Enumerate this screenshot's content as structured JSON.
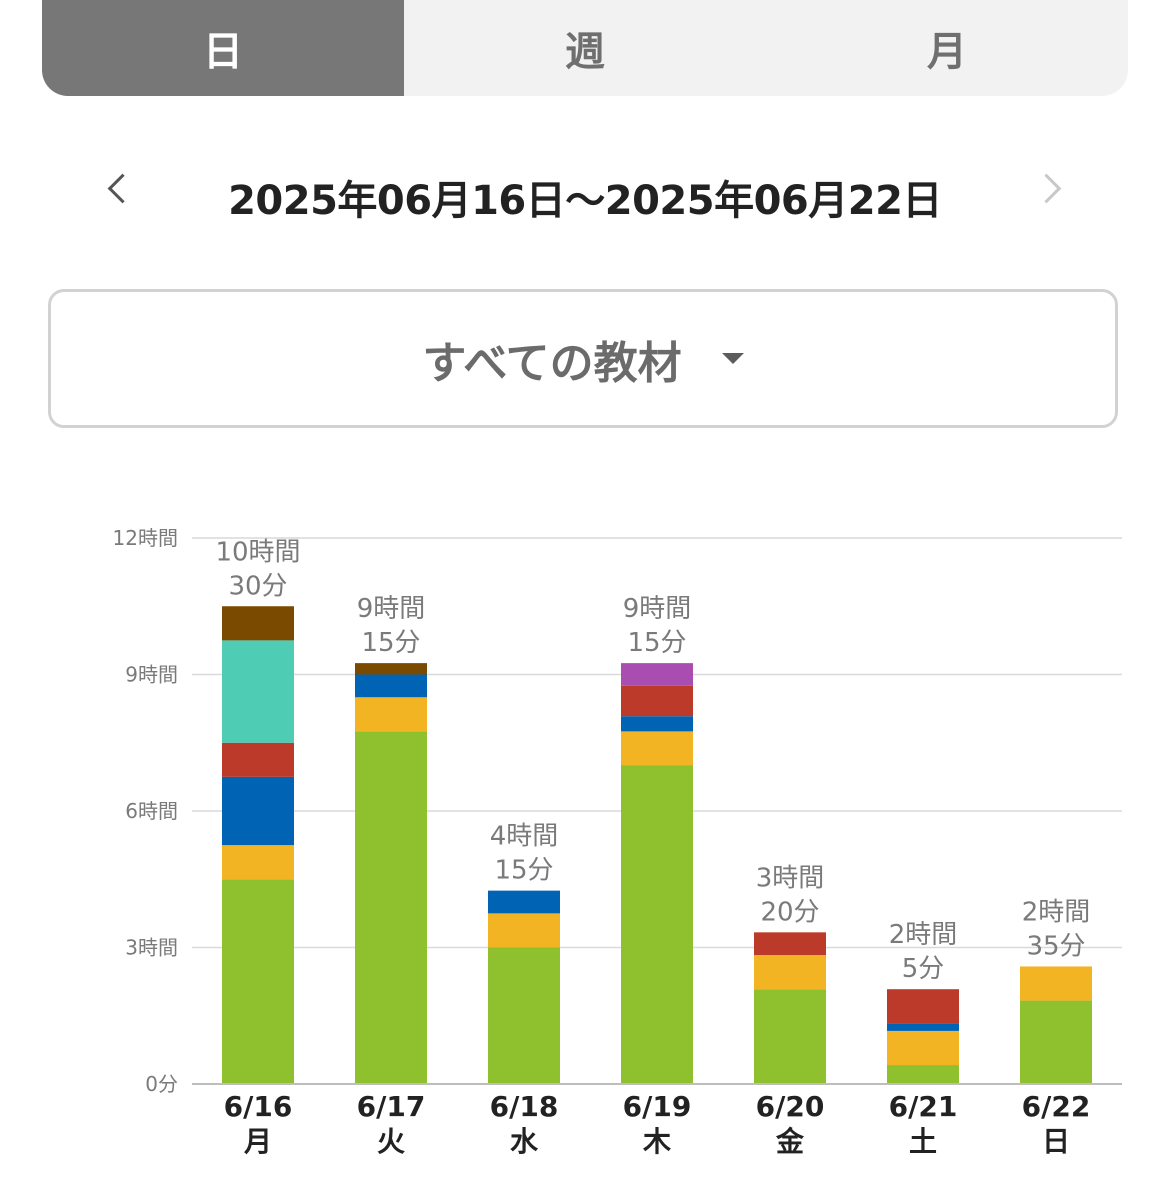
{
  "tabs": [
    {
      "label": "日",
      "active": true
    },
    {
      "label": "週",
      "active": false
    },
    {
      "label": "月",
      "active": false
    }
  ],
  "date_range": "2025年06月16日〜2025年06月22日",
  "filter": {
    "label": "すべての教材"
  },
  "chart_data": {
    "type": "bar",
    "stacked": true,
    "y_unit": "minutes",
    "ylim": [
      0,
      720
    ],
    "grid": true,
    "y_ticks": [
      {
        "value": 0,
        "label": "0分"
      },
      {
        "value": 180,
        "label": "3時間"
      },
      {
        "value": 360,
        "label": "6時間"
      },
      {
        "value": 540,
        "label": "9時間"
      },
      {
        "value": 720,
        "label": "12時間"
      }
    ],
    "categories": [
      {
        "date": "6/16",
        "weekday": "月"
      },
      {
        "date": "6/17",
        "weekday": "火"
      },
      {
        "date": "6/18",
        "weekday": "水"
      },
      {
        "date": "6/19",
        "weekday": "木"
      },
      {
        "date": "6/20",
        "weekday": "金"
      },
      {
        "date": "6/21",
        "weekday": "土"
      },
      {
        "date": "6/22",
        "weekday": "日"
      }
    ],
    "totals": [
      {
        "line1": "10時間",
        "line2": "30分",
        "value": 630
      },
      {
        "line1": "9時間",
        "line2": "15分",
        "value": 555
      },
      {
        "line1": "4時間",
        "line2": "15分",
        "value": 255
      },
      {
        "line1": "9時間",
        "line2": "15分",
        "value": 555
      },
      {
        "line1": "3時間",
        "line2": "20分",
        "value": 200
      },
      {
        "line1": "2時間",
        "line2": "5分",
        "value": 125
      },
      {
        "line1": "2時間",
        "line2": "35分",
        "value": 155
      }
    ],
    "series": [
      {
        "color": "#8fc02d",
        "values": [
          270,
          465,
          180,
          420,
          125,
          25,
          110
        ]
      },
      {
        "color": "#f2b422",
        "values": [
          45,
          45,
          45,
          45,
          45,
          45,
          45
        ]
      },
      {
        "color": "#0063b3",
        "values": [
          90,
          30,
          30,
          20,
          0,
          10,
          0
        ]
      },
      {
        "color": "#bb3a29",
        "values": [
          45,
          0,
          0,
          40,
          30,
          45,
          0
        ]
      },
      {
        "color": "#4ecdb4",
        "values": [
          135,
          0,
          0,
          0,
          0,
          0,
          0
        ]
      },
      {
        "color": "#7a4a00",
        "values": [
          45,
          15,
          0,
          0,
          0,
          0,
          0
        ]
      },
      {
        "color": "#a94eb0",
        "values": [
          0,
          0,
          0,
          30,
          0,
          0,
          0
        ]
      }
    ]
  }
}
